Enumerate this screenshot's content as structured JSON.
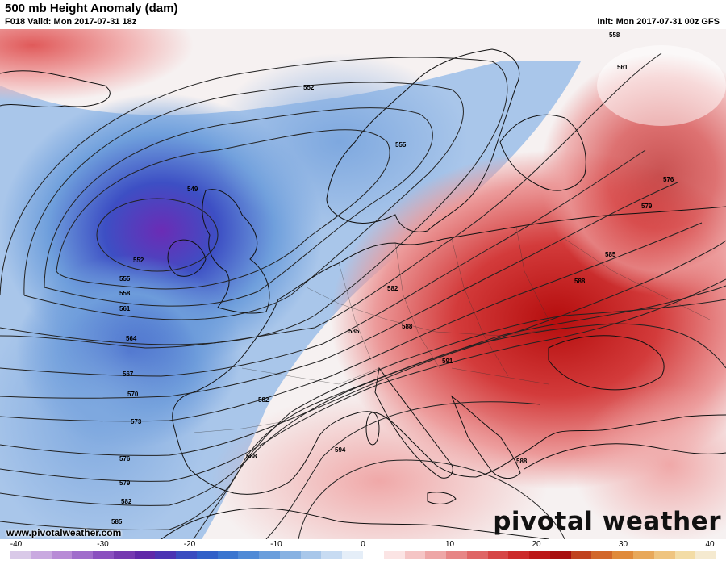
{
  "header": {
    "title": "500 mb Height Anomaly (dam)",
    "subtitle": "F018 Valid: Mon 2017-07-31 18z",
    "init": "Init: Mon 2017-07-31 00z GFS"
  },
  "footer": {
    "website": "www.pivotalweather.com",
    "logo": "pivotal weather"
  },
  "contour_labels": [
    "549",
    "552",
    "552",
    "555",
    "555",
    "558",
    "558",
    "561",
    "561",
    "564",
    "567",
    "570",
    "573",
    "576",
    "576",
    "579",
    "579",
    "582",
    "582",
    "582",
    "585",
    "585",
    "585",
    "588",
    "588",
    "588",
    "588",
    "591",
    "594"
  ],
  "colorbar": {
    "ticks": [
      "-40",
      "-30",
      "-20",
      "-10",
      "0",
      "10",
      "20",
      "30",
      "40"
    ],
    "colors": [
      "#d9c9e8",
      "#c9a9e0",
      "#b88ad6",
      "#a06ccb",
      "#8a4fbf",
      "#7538b0",
      "#6027a8",
      "#4b33b3",
      "#3a4cc0",
      "#3160c8",
      "#3a75cf",
      "#4f8ad6",
      "#6a9edc",
      "#88b2e2",
      "#a8c7ea",
      "#c7dbf2",
      "#e5eef8",
      "#ffffff",
      "#fbe4e4",
      "#f5c5c5",
      "#eea6a6",
      "#e78585",
      "#df6565",
      "#d64545",
      "#cc2a2a",
      "#bc1818",
      "#a80f0f",
      "#c0431f",
      "#d2672a",
      "#e08a3a",
      "#e8a85a",
      "#efc47f",
      "#f3dca5",
      "#f5ead0"
    ],
    "colors_note_range": [
      -40,
      40
    ]
  },
  "colors": {
    "deep_negative": "#6a2fb8",
    "negative": "#3a6fcf",
    "neutral": "#ffffff",
    "positive": "#e06060",
    "deep_positive": "#bb1010",
    "coast": "#111111",
    "contour": "#222222"
  }
}
